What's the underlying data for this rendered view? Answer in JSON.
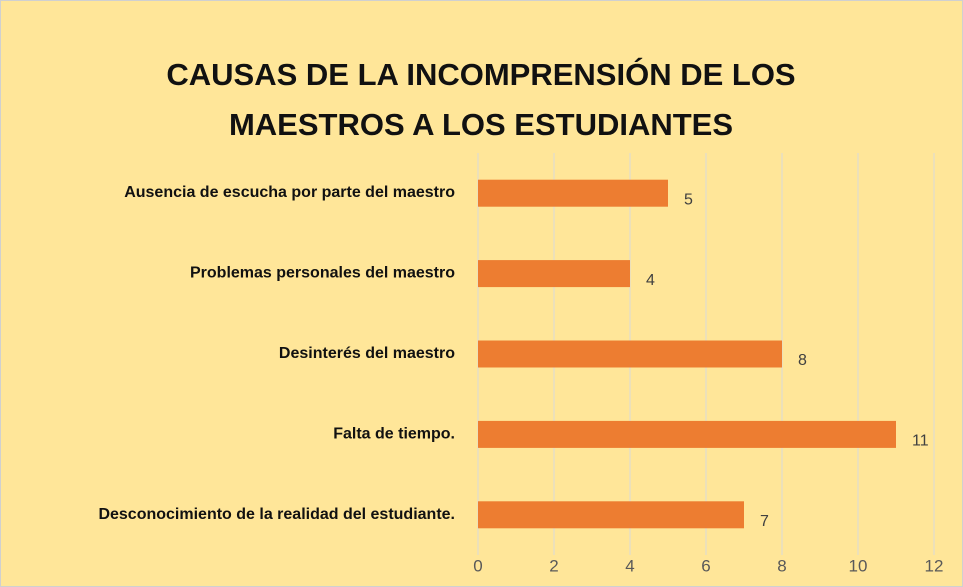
{
  "chart_data": {
    "type": "barh",
    "title": "CAUSAS DE LA INCOMPRENSIÓN DE LOS MAESTROS A LOS ESTUDIANTES",
    "categories": [
      "Ausencia de escucha por parte del maestro",
      "Problemas personales del maestro",
      "Desinterés del maestro",
      "Falta de tiempo.",
      "Desconocimiento de la realidad del estudiante."
    ],
    "values": [
      5,
      4,
      8,
      11,
      7
    ],
    "color": "#ed7d31",
    "xlim": [
      0,
      12
    ],
    "xticks": [
      0,
      2,
      4,
      6,
      8,
      10,
      12
    ],
    "grid": true
  }
}
